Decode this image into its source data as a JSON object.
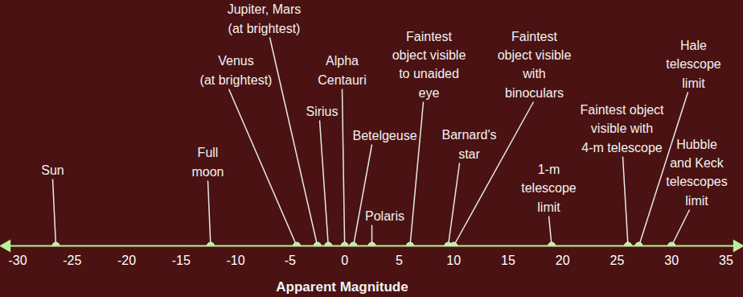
{
  "chart_data": {
    "type": "scatter",
    "xlabel": "Apparent Magnitude",
    "categories": [
      "Sun",
      "Full\nmoon",
      "Venus\n(at brightest)",
      "Jupiter, Mars\n(at brightest)",
      "Sirius",
      "Alpha\nCentauri",
      "Betelgeuse",
      "Polaris",
      "Faintest\nobject visible\nto unaided\neye",
      "Barnard's\nstar",
      "Faintest\nobject visible\nwith\nbinoculars",
      "1-m\ntelescope\nlimit",
      "Faintest object\nvisible with\n4-m telescope",
      "Hale\ntelescope\nlimit",
      "Hubble\nand Keck\ntelescopes\nlimit"
    ],
    "values": [
      -26.5,
      -12.3,
      -4.4,
      -2.5,
      -1.5,
      0,
      0.8,
      2.5,
      6,
      9.5,
      10,
      19,
      26,
      27,
      30
    ],
    "xlim": [
      -31,
      36
    ],
    "xticks": [
      -30,
      -25,
      -20,
      -15,
      -10,
      -5,
      0,
      5,
      10,
      15,
      20,
      25,
      30,
      35
    ],
    "color": "#b9f09a",
    "tick_labels": "x"
  }
}
